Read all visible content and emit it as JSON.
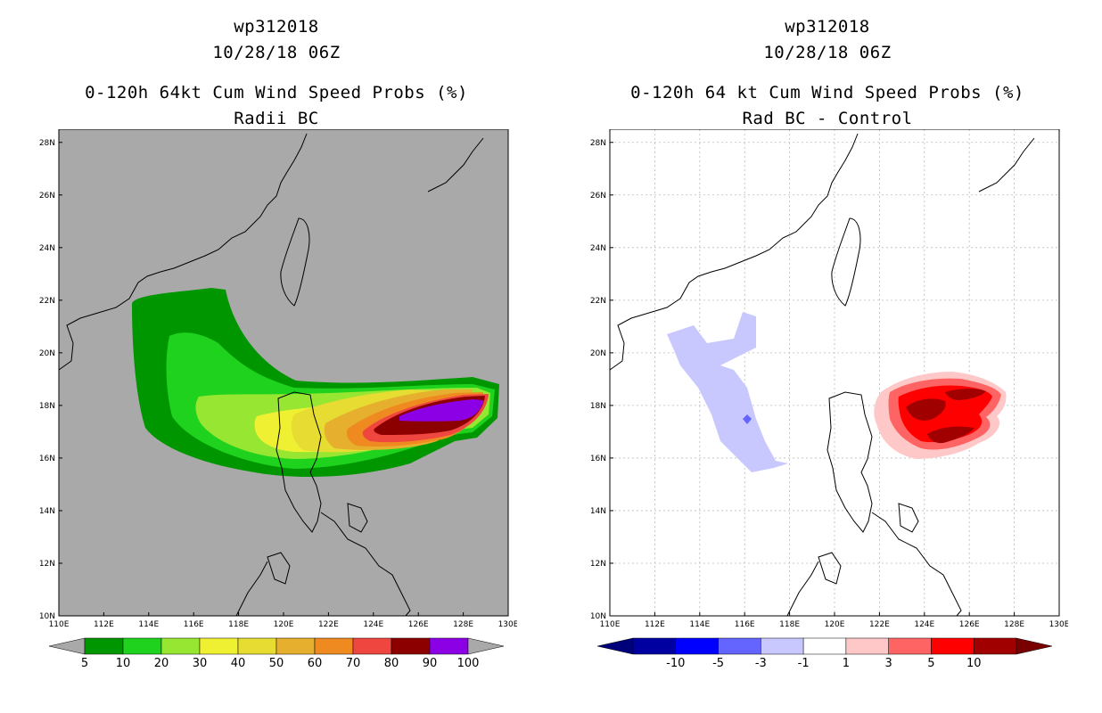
{
  "left": {
    "storm_id": "wp312018",
    "datetime": "10/28/18 06Z",
    "title": "0-120h 64kt Cum Wind Speed Probs (%)",
    "subtitle": "Radii BC",
    "background": "#a9a9a9",
    "colorbar": {
      "colors": [
        "#009600",
        "#1ed21e",
        "#96e632",
        "#f0f032",
        "#e6dc32",
        "#e6af2d",
        "#ee8a20",
        "#f04640",
        "#8c0000",
        "#8c00e6"
      ],
      "labels": [
        "5",
        "10",
        "20",
        "30",
        "40",
        "50",
        "60",
        "70",
        "80",
        "90",
        "100"
      ]
    }
  },
  "right": {
    "storm_id": "wp312018",
    "datetime": "10/28/18 06Z",
    "title": "0-120h 64 kt Cum Wind Speed Probs (%)",
    "subtitle": "Rad BC - Control",
    "background": "#ffffff",
    "colorbar": {
      "colors": [
        "#0000a0",
        "#0000ff",
        "#6464ff",
        "#c8c8ff",
        "#ffffff",
        "#ffc8c8",
        "#ff6464",
        "#ff0000",
        "#a00000"
      ],
      "labels": [
        "-10",
        "-5",
        "-3",
        "-1",
        "1",
        "3",
        "5",
        "10"
      ]
    }
  },
  "axes": {
    "lon_labels": [
      "110E",
      "112E",
      "114E",
      "116E",
      "118E",
      "120E",
      "122E",
      "124E",
      "126E",
      "128E",
      "130E"
    ],
    "lat_labels": [
      "10N",
      "12N",
      "14N",
      "16N",
      "18N",
      "20N",
      "22N",
      "24N",
      "26N",
      "28N"
    ],
    "lon_range": [
      110,
      130
    ],
    "lat_range": [
      10,
      28.5
    ]
  }
}
